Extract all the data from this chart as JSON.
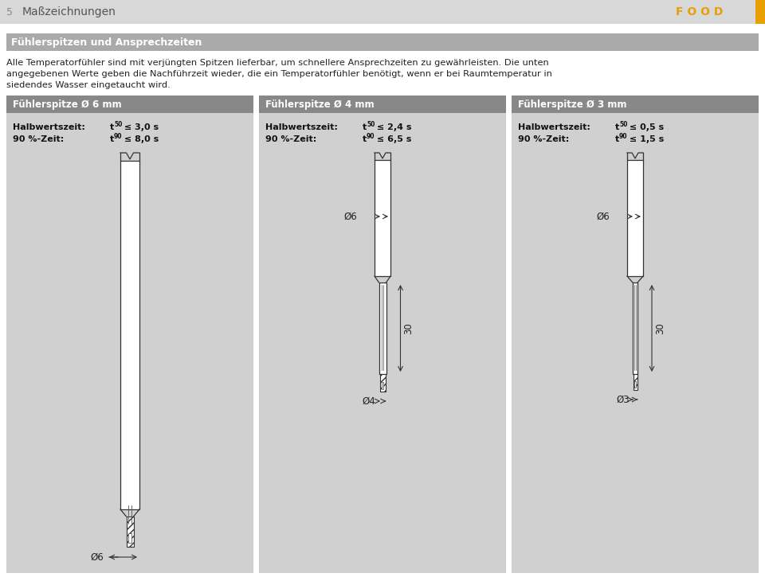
{
  "page_num": "5",
  "header_title": "Maßzeichnungen",
  "header_bg": "#d8d8d8",
  "header_text_color": "#555555",
  "food_text": "F O O D",
  "food_color": "#e8a000",
  "orange_bar_color": "#e8a000",
  "section_title": "Fühlerspitzen und Ansprechzeiten",
  "section_title_bg": "#aaaaaa",
  "body_text_line1": "Alle Temperatorfühler sind mit verjüngten Spitzen lieferbar, um schnellere Ansprechzeiten zu gewährleisten. Die unten",
  "body_text_line2": "angegebenen Werte geben die Nachführzeit wieder, die ein Temperatorfühler benötigt, wenn er bei Raumtemperatur in",
  "body_text_line3": "siedendes Wasser eingetaucht wird.",
  "bg_color": "#ffffff",
  "panel_bg": "#d0d0d0",
  "panel_title_bg": "#888888",
  "panels": [
    {
      "title": "Fühlerspitze Ø 6 mm",
      "halbwertszeit_label": "Halbwertszeit:",
      "t50_label": "t",
      "t50_sub": "50",
      "t50_val": " ≤ 3,0 s",
      "prozent_label": "90 %-Zeit:",
      "t90_label": "t",
      "t90_sub": "90",
      "t90_val": " ≤ 8,0 s",
      "top_dim": "Ø6",
      "bot_dim": null,
      "side_dim": null
    },
    {
      "title": "Fühlerspitze Ø 4 mm",
      "halbwertszeit_label": "Halbwertszeit:",
      "t50_label": "t",
      "t50_sub": "50",
      "t50_val": " ≤ 2,4 s",
      "prozent_label": "90 %-Zeit:",
      "t90_label": "t",
      "t90_sub": "90",
      "t90_val": " ≤ 6,5 s",
      "top_dim": "Ø6",
      "bot_dim": "Ø4",
      "side_dim": "30"
    },
    {
      "title": "Fühlerspitze Ø 3 mm",
      "halbwertszeit_label": "Halbwertszeit:",
      "t50_label": "t",
      "t50_sub": "50",
      "t50_val": " ≤ 0,5 s",
      "prozent_label": "90 %-Zeit:",
      "t90_label": "t",
      "t90_sub": "90",
      "t90_val": " ≤ 1,5 s",
      "top_dim": "Ø6",
      "bot_dim": "Ø3",
      "side_dim": "30"
    }
  ]
}
